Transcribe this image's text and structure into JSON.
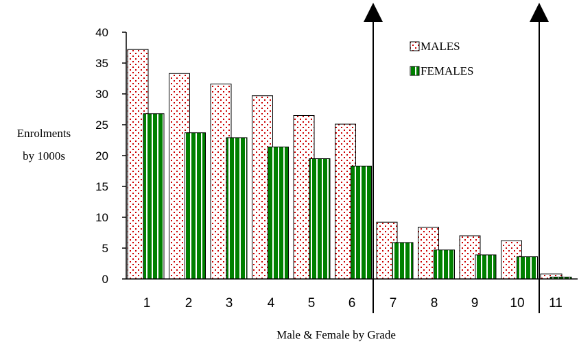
{
  "chart_data": {
    "type": "bar",
    "categories": [
      "1",
      "2",
      "3",
      "4",
      "5",
      "6",
      "7",
      "8",
      "9",
      "10",
      "11"
    ],
    "series": [
      {
        "name": "MALES",
        "values": [
          37.2,
          33.3,
          31.6,
          29.7,
          26.5,
          25.1,
          9.2,
          8.4,
          7.0,
          6.2,
          0.8
        ]
      },
      {
        "name": "FEMALES",
        "values": [
          26.8,
          23.7,
          22.9,
          21.4,
          19.5,
          18.3,
          5.9,
          4.7,
          3.9,
          3.6,
          0.3
        ]
      }
    ],
    "ylabel_line1": "Enrolments",
    "ylabel_line2": "by 1000s",
    "xlabel": "Male & Female by Grade",
    "ylim": [
      0,
      40
    ],
    "yticks": [
      "0",
      "5",
      "10",
      "15",
      "20",
      "25",
      "30",
      "35",
      "40"
    ],
    "legend_placement": "top-right",
    "grid": false,
    "colors": {
      "males_pattern_dots": "#cc0000",
      "females_fill": "#008000",
      "females_stripes": "#ffffff",
      "axis": "#000000"
    },
    "annotations": [
      "arrow-up-after-grade-6",
      "arrow-up-after-grade-10"
    ]
  }
}
